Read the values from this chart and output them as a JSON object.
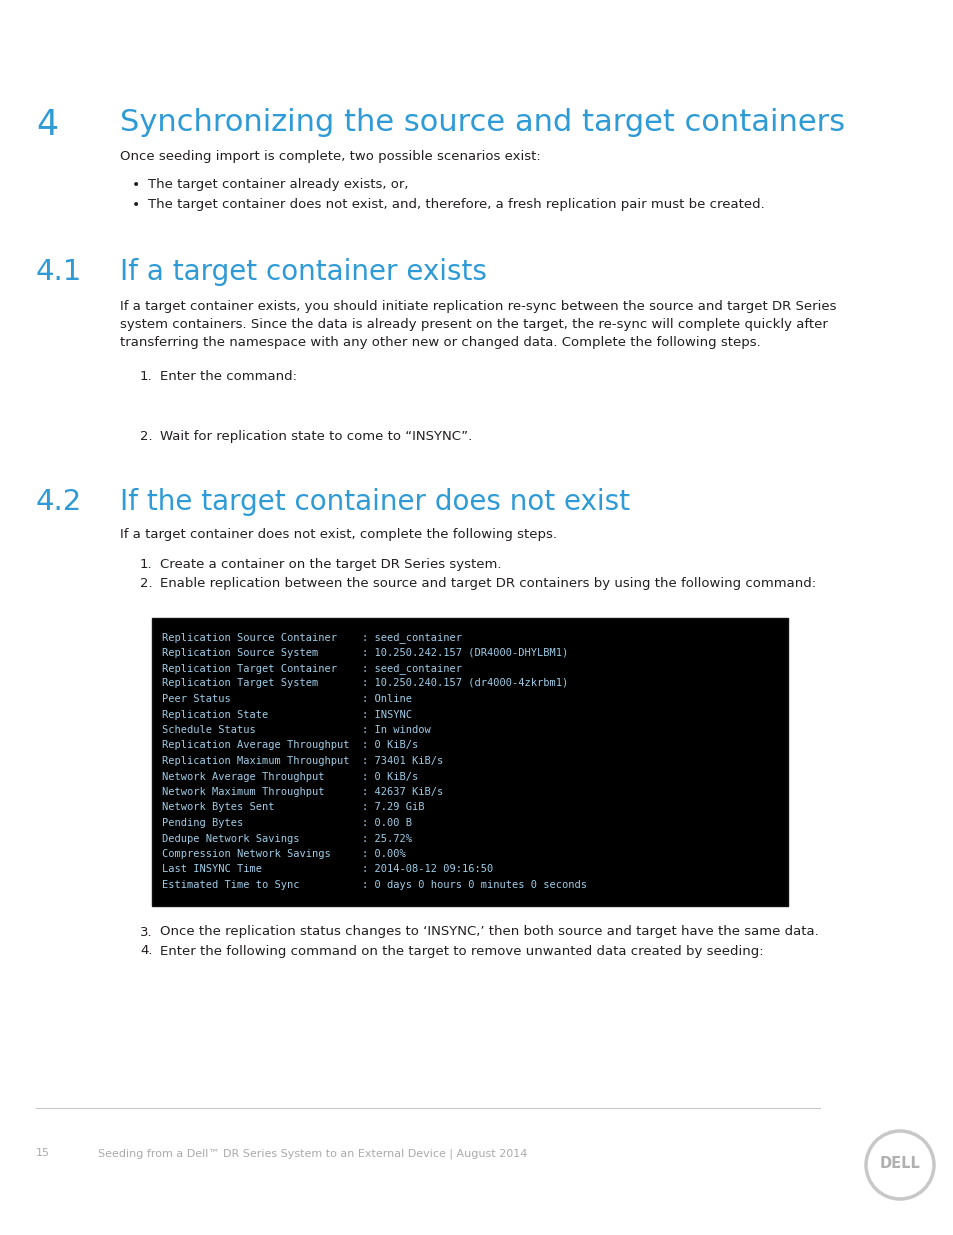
{
  "bg_color": "#ffffff",
  "header_blue": "#2e9bd6",
  "text_color": "#231f20",
  "light_gray": "#c8c8c8",
  "footer_gray": "#aaaaaa",
  "chapter_num": "4",
  "chapter_title": "Synchronizing the source and target containers",
  "intro_text": "Once seeding import is complete, two possible scenarios exist:",
  "bullet1": "The target container already exists, or,",
  "bullet2": "The target container does not exist, and, therefore, a fresh replication pair must be created.",
  "sec41_num": "4.1",
  "sec41_title": "If a target container exists",
  "sec41_body_lines": [
    "If a target container exists, you should initiate replication re-sync between the source and target DR Series",
    "system containers. Since the data is already present on the target, the re-sync will complete quickly after",
    "transferring the namespace with any other new or changed data. Complete the following steps."
  ],
  "sec41_step1": "Enter the command:",
  "sec41_step2": "Wait for replication state to come to “INSYNC”.",
  "sec42_num": "4.2",
  "sec42_title": "If the target container does not exist",
  "sec42_body": "If a target container does not exist, complete the following steps.",
  "sec42_step1": "Create a container on the target DR Series system.",
  "sec42_step2": "Enable replication between the source and target DR containers by using the following command:",
  "terminal_lines": [
    "Replication Source Container    : seed_container",
    "Replication Source System       : 10.250.242.157 (DR4000-DHYLBM1)",
    "Replication Target Container    : seed_container",
    "Replication Target System       : 10.250.240.157 (dr4000-4zkrbm1)",
    "Peer Status                     : Online",
    "Replication State               : INSYNC",
    "Schedule Status                 : In window",
    "Replication Average Throughput  : 0 KiB/s",
    "Replication Maximum Throughput  : 73401 KiB/s",
    "Network Average Throughput      : 0 KiB/s",
    "Network Maximum Throughput      : 42637 KiB/s",
    "Network Bytes Sent              : 7.29 GiB",
    "Pending Bytes                   : 0.00 B",
    "Dedupe Network Savings          : 25.72%",
    "Compression Network Savings     : 0.00%",
    "Last INSYNC Time                : 2014-08-12 09:16:50",
    "Estimated Time to Sync          : 0 days 0 hours 0 minutes 0 seconds"
  ],
  "sec42_step3": "Once the replication status changes to ‘INSYNC,’ then both source and target have the same data.",
  "sec42_step4": "Enter the following command on the target to remove unwanted data created by seeding:",
  "footer_page": "15",
  "footer_text": "Seeding from a Dell™ DR Series System to an External Device | August 2014"
}
